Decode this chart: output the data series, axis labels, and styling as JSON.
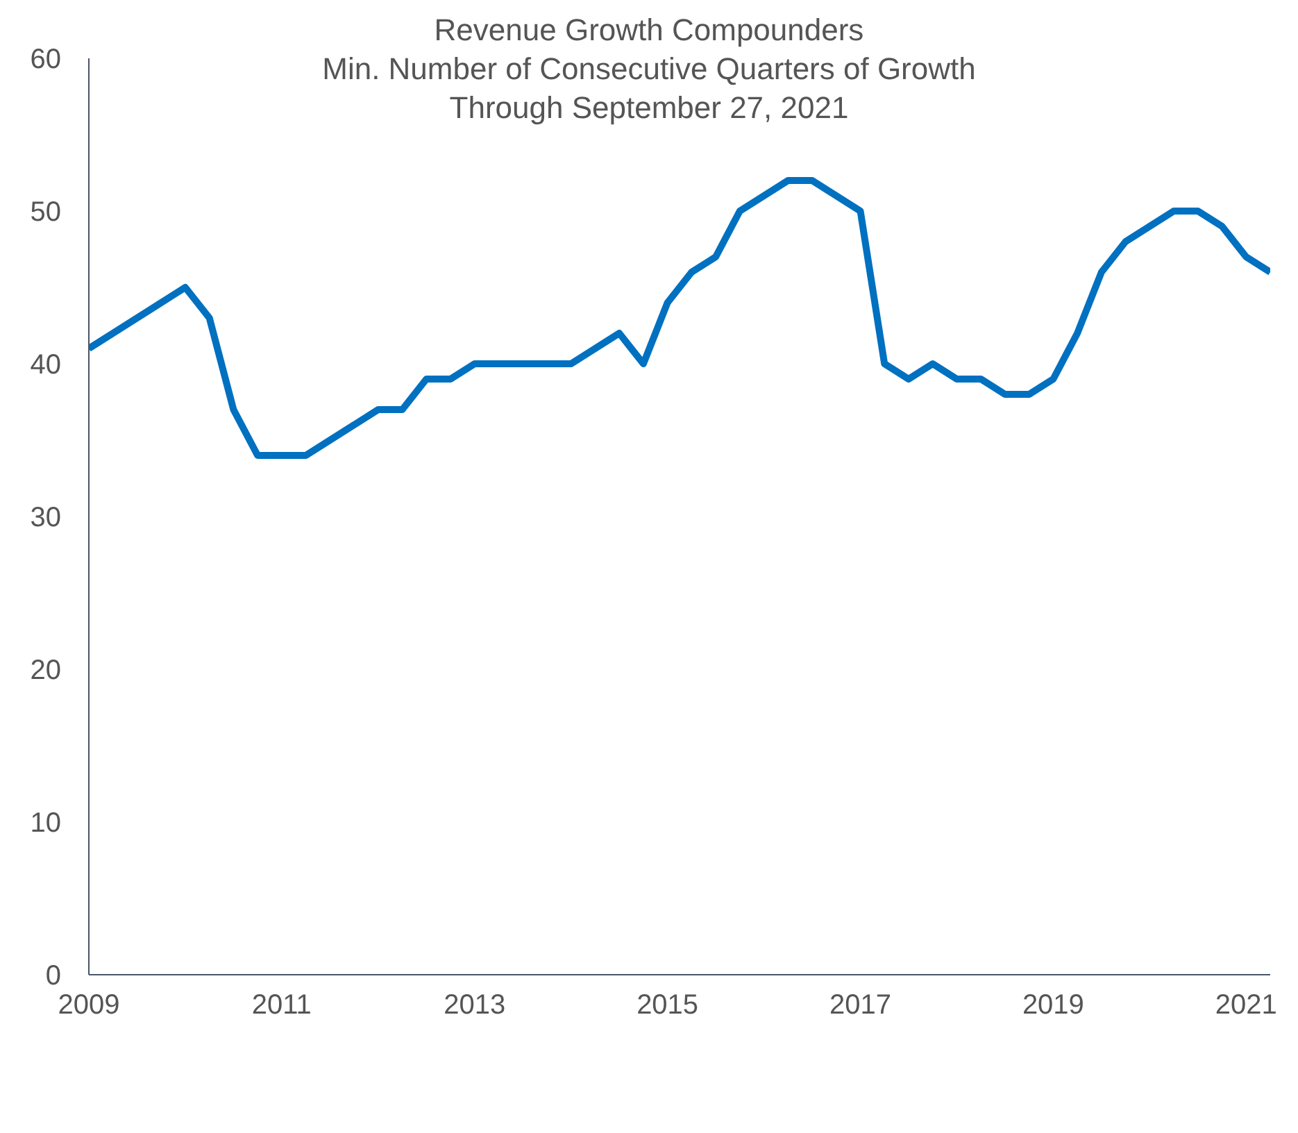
{
  "chart_data": {
    "type": "line",
    "title": "Revenue Growth Compounders\nMin. Number of Consecutive Quarters of Growth\nThrough September 27, 2021",
    "x": [
      2009,
      2009.25,
      2009.5,
      2009.75,
      2010,
      2010.25,
      2010.5,
      2010.75,
      2011,
      2011.25,
      2011.5,
      2011.75,
      2012,
      2012.25,
      2012.5,
      2012.75,
      2013,
      2013.25,
      2013.5,
      2013.75,
      2014,
      2014.25,
      2014.5,
      2014.75,
      2015,
      2015.25,
      2015.5,
      2015.75,
      2016,
      2016.25,
      2016.5,
      2016.75,
      2017,
      2017.25,
      2017.5,
      2017.75,
      2018,
      2018.25,
      2018.5,
      2018.75,
      2019,
      2019.25,
      2019.5,
      2019.75,
      2020,
      2020.25,
      2020.5,
      2020.75,
      2021,
      2021.25
    ],
    "series": [
      {
        "color": "#0070c0",
        "values": [
          41,
          42,
          43,
          44,
          45,
          43,
          37,
          34,
          34,
          34,
          35,
          36,
          37,
          37,
          39,
          39,
          40,
          40,
          40,
          40,
          40,
          41,
          42,
          40,
          44,
          46,
          47,
          50,
          51,
          52,
          52,
          51,
          50,
          40,
          39,
          40,
          39,
          39,
          38,
          38,
          39,
          42,
          46,
          48,
          49,
          50,
          50,
          49,
          47,
          46
        ]
      }
    ],
    "xlim": [
      2009,
      2021.25
    ],
    "xticks": [
      2009,
      2011,
      2013,
      2015,
      2017,
      2019,
      2021
    ],
    "ylim": [
      0,
      60
    ],
    "yticks": [
      0,
      10,
      20,
      30,
      40,
      50,
      60
    ],
    "grid": false,
    "legend": false,
    "marker": "none",
    "line_style": "solid"
  }
}
